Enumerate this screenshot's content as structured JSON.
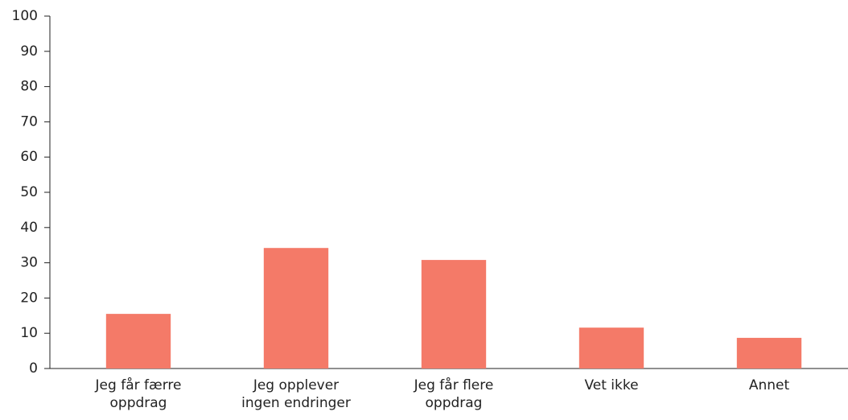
{
  "chart_data": {
    "type": "bar",
    "categories": [
      "Jeg får færre oppdrag",
      "Jeg opplever ingen endringer",
      "Jeg får flere oppdrag",
      "Vet ikke",
      "Annet"
    ],
    "values": [
      15.5,
      34.2,
      30.8,
      11.6,
      8.7
    ],
    "color": "#f47a68",
    "ylim": [
      0,
      100
    ],
    "yticks": [
      0,
      10,
      20,
      30,
      40,
      50,
      60,
      70,
      80,
      90,
      100
    ],
    "grid": false
  }
}
